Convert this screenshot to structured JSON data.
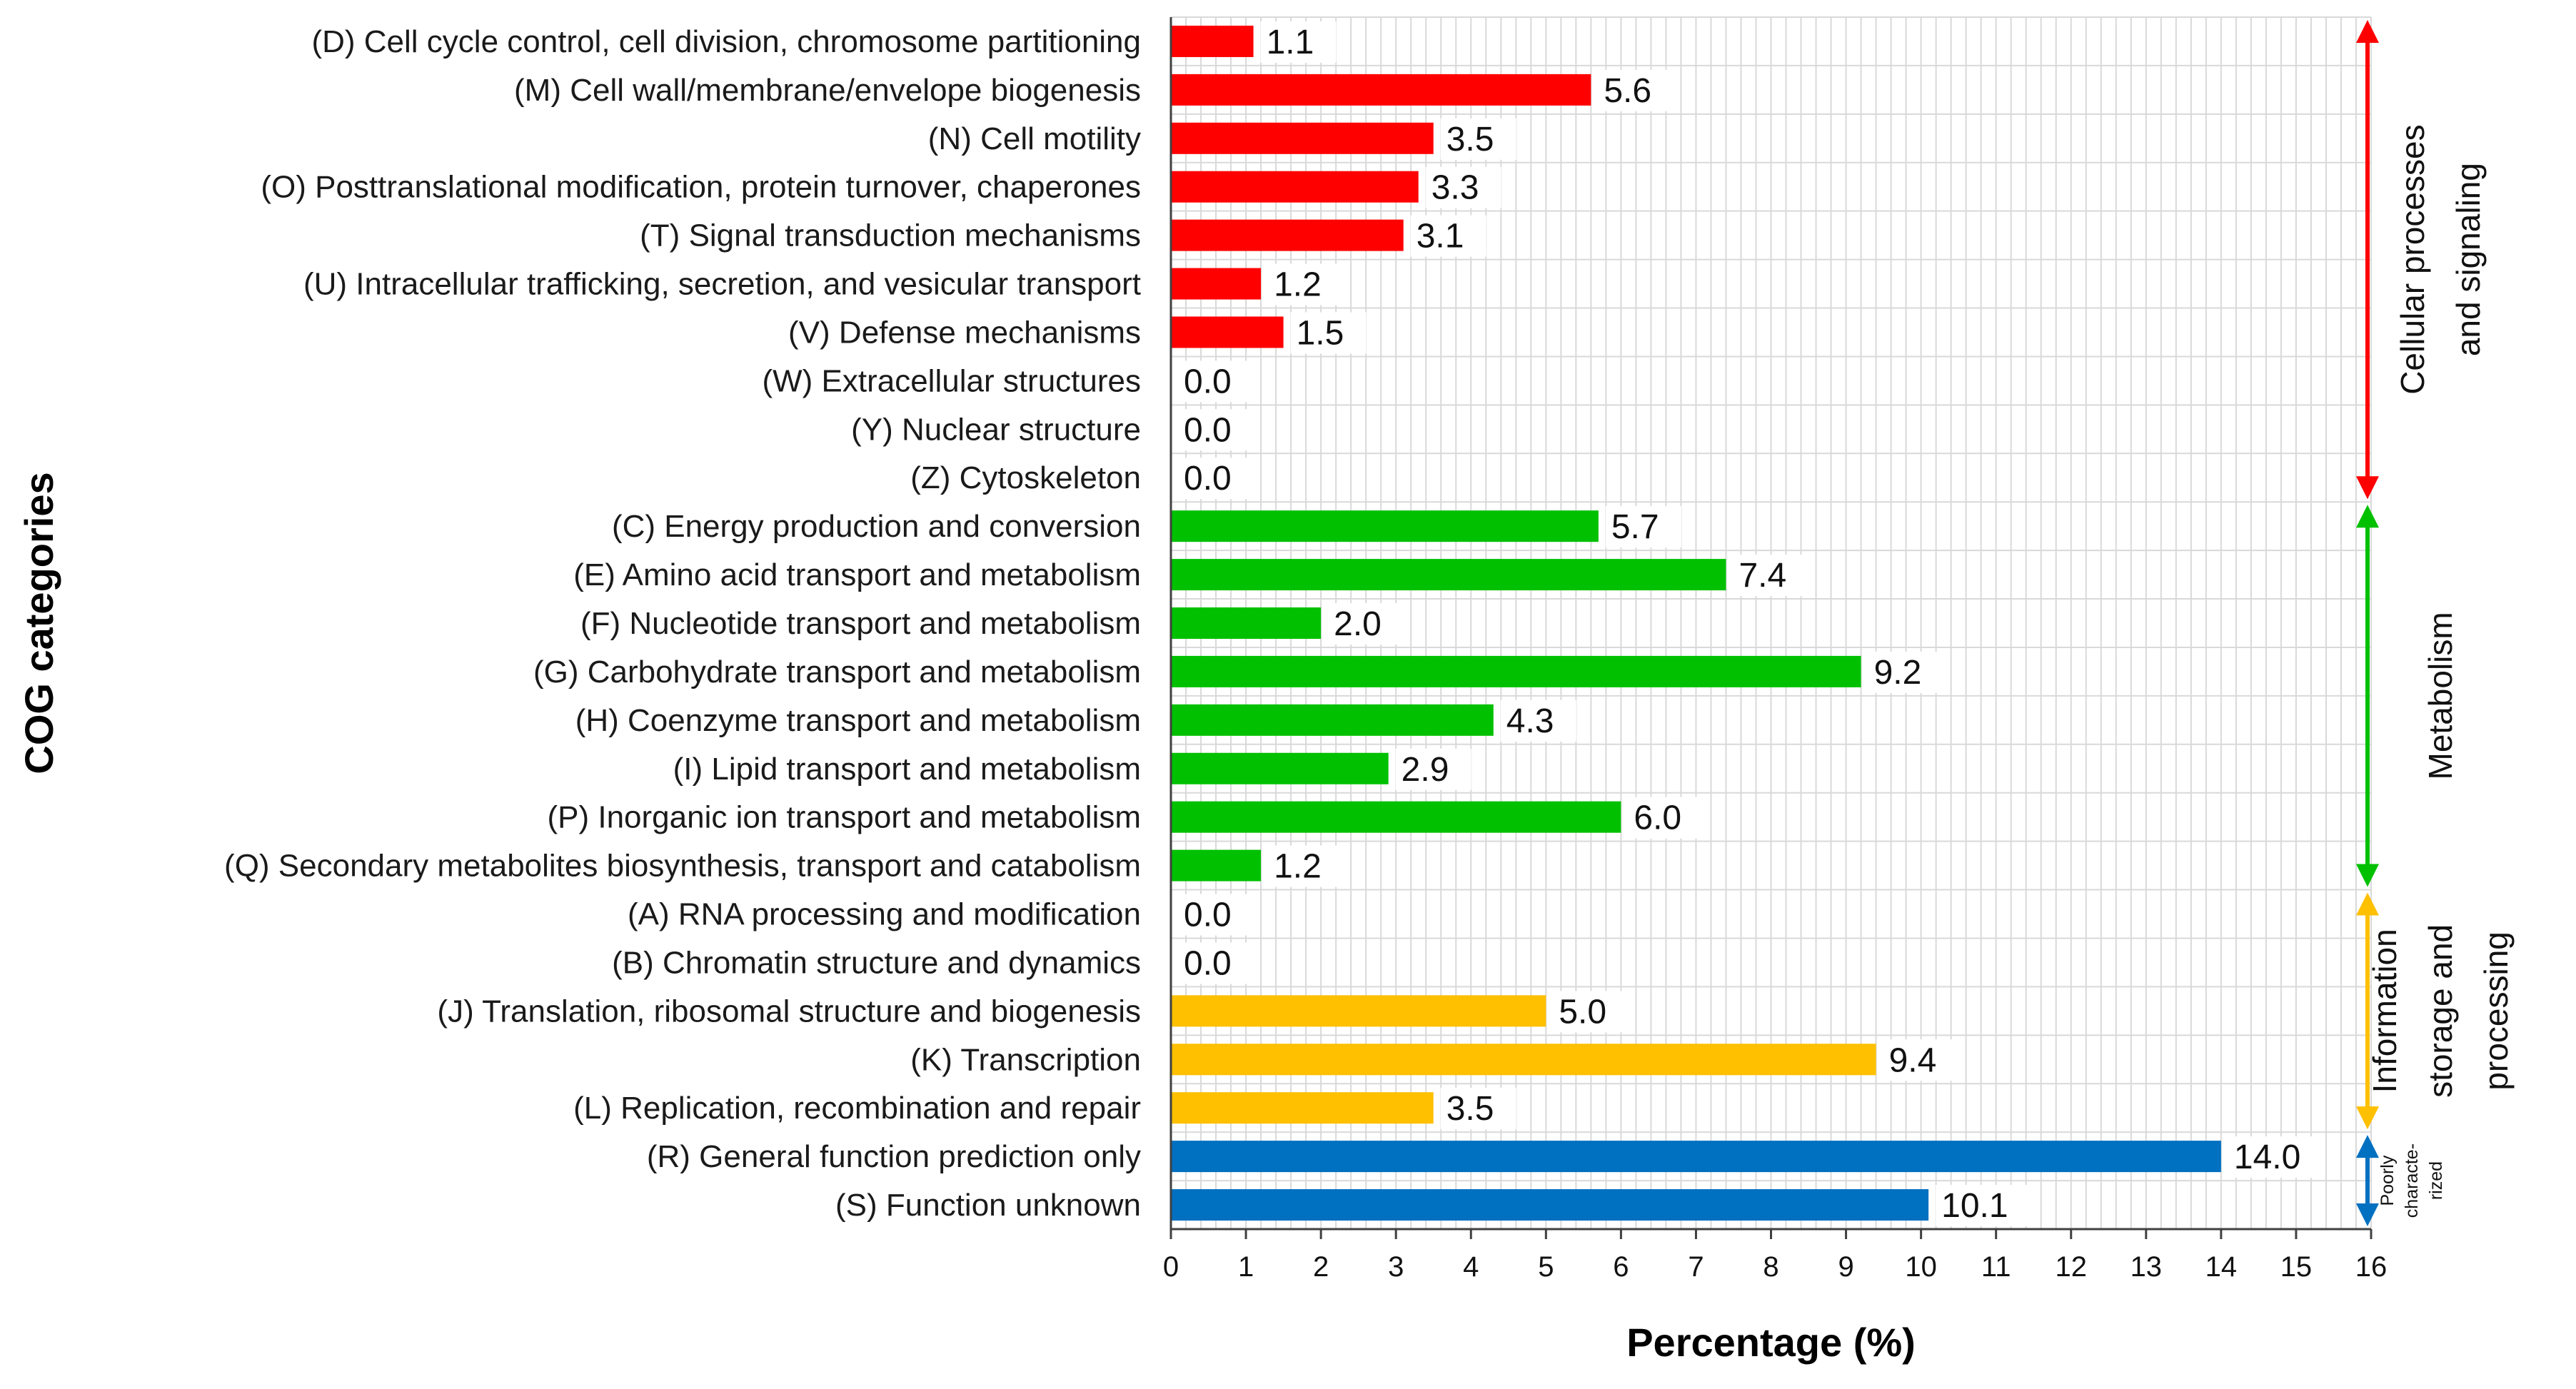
{
  "chart_data": {
    "type": "bar",
    "orientation": "horizontal",
    "xlabel": "Percentage (%)",
    "ylabel": "COG categories",
    "xlim": [
      0,
      16
    ],
    "xticks": [
      0,
      1,
      2,
      3,
      4,
      5,
      6,
      7,
      8,
      9,
      10,
      11,
      12,
      13,
      14,
      15,
      16
    ],
    "grid": true,
    "categories": [
      "(D) Cell cycle control, cell division, chromosome partitioning",
      "(M) Cell wall/membrane/envelope biogenesis",
      "(N) Cell motility",
      "(O) Posttranslational modification, protein turnover, chaperones",
      "(T) Signal transduction mechanisms",
      "(U) Intracellular trafficking, secretion, and vesicular transport",
      "(V) Defense mechanisms",
      "(W) Extracellular structures",
      "(Y) Nuclear structure",
      "(Z) Cytoskeleton",
      "(C) Energy production and conversion",
      "(E) Amino acid transport and metabolism",
      "(F) Nucleotide transport and metabolism",
      "(G) Carbohydrate transport and metabolism",
      "(H) Coenzyme transport and metabolism",
      "(I) Lipid transport and metabolism",
      "(P) Inorganic ion transport and metabolism",
      "(Q) Secondary metabolites biosynthesis, transport and catabolism",
      "(A) RNA processing and modification",
      "(B) Chromatin structure and dynamics",
      "(J) Translation, ribosomal structure and biogenesis",
      "(K) Transcription",
      "(L) Replication, recombination and repair",
      "(R) General function prediction only",
      "(S) Function unknown"
    ],
    "values": [
      1.1,
      5.6,
      3.5,
      3.3,
      3.1,
      1.2,
      1.5,
      0.0,
      0.0,
      0.0,
      5.7,
      7.4,
      2.0,
      9.2,
      4.3,
      2.9,
      6.0,
      1.2,
      0.0,
      0.0,
      5.0,
      9.4,
      3.5,
      14.0,
      10.1
    ],
    "value_labels": [
      "1.1",
      "5.6",
      "3.5",
      "3.3",
      "3.1",
      "1.2",
      "1.5",
      "0.0",
      "0.0",
      "0.0",
      "5.7",
      "7.4",
      "2.0",
      "9.2",
      "4.3",
      "2.9",
      "6.0",
      "1.2",
      "0.0",
      "0.0",
      "5.0",
      "9.4",
      "3.5",
      "14.0",
      "10.1"
    ],
    "groups": [
      {
        "key": "cellular",
        "lines": [
          "Cellular processes",
          "and signaling"
        ],
        "start": 0,
        "end": 9,
        "color": "#ff0000"
      },
      {
        "key": "metabolism",
        "lines": [
          "Metabolism"
        ],
        "start": 10,
        "end": 17,
        "color": "#00c000"
      },
      {
        "key": "information",
        "lines": [
          "Information",
          "storage and",
          "processing"
        ],
        "start": 18,
        "end": 22,
        "color": "#ffc000"
      },
      {
        "key": "poorly",
        "lines": [
          "Poorly",
          "characte-",
          "rized"
        ],
        "start": 23,
        "end": 24,
        "color": "#0070c0"
      }
    ]
  }
}
